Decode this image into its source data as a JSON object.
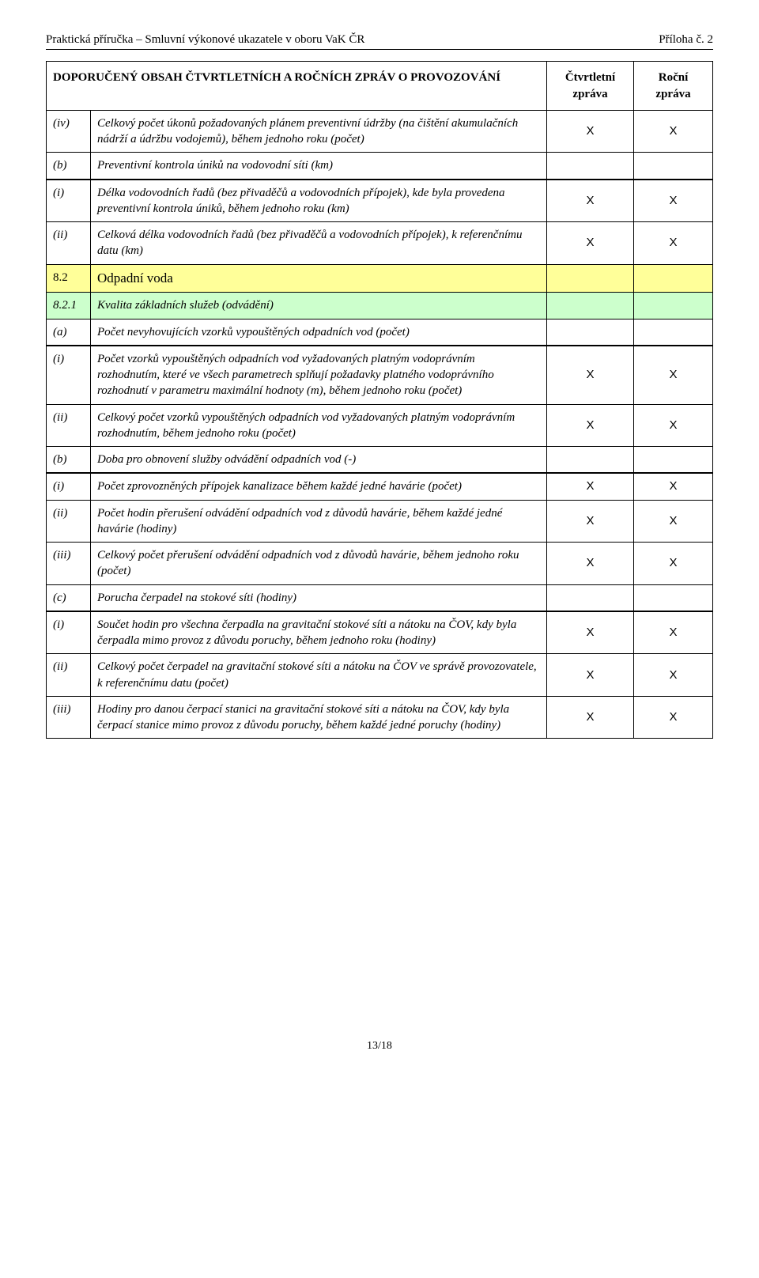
{
  "header": {
    "left": "Praktická příručka – Smluvní výkonové ukazatele v oboru VaK ČR",
    "right": "Příloha č. 2"
  },
  "table": {
    "title": "DOPORUČENÝ OBSAH ČTVRTLETNÍCH A ROČNÍCH ZPRÁV O PROVOZOVÁNÍ",
    "col_q": "Čtvrtletní zpráva",
    "col_y": "Roční zpráva",
    "mark": "X",
    "rows": [
      {
        "id": "(iv)",
        "desc": "Celkový počet úkonů požadovaných plánem preventivní údržby (na čištění akumulačních nádrží a údržbu vodojemů), během jednoho roku (počet)",
        "q": true,
        "y": true
      },
      {
        "id": "(b)",
        "desc": "Preventivní kontrola úniků na vodovodní síti (km)",
        "q": false,
        "y": false,
        "thick": true
      },
      {
        "id": "(i)",
        "desc": "Délka vodovodních řadů (bez přivaděčů a vodovodních přípojek), kde byla provedena preventivní kontrola úniků, během jednoho roku (km)",
        "q": true,
        "y": true
      },
      {
        "id": "(ii)",
        "desc": "Celková délka vodovodních řadů (bez přivaděčů a vodovodních přípojek), k referenčnímu datu (km)",
        "q": true,
        "y": true
      },
      {
        "section": "82",
        "id": "8.2",
        "desc": "Odpadní voda"
      },
      {
        "section": "821",
        "id": "8.2.1",
        "desc": "Kvalita základních služeb (odvádění)"
      },
      {
        "id": "(a)",
        "desc": "Počet nevyhovujících vzorků vypouštěných odpadních vod (počet)",
        "q": false,
        "y": false,
        "thick": true
      },
      {
        "id": "(i)",
        "desc": "Počet vzorků vypouštěných odpadních vod vyžadovaných platným vodoprávním rozhodnutím, které ve všech parametrech splňují požadavky platného vodoprávního rozhodnutí v parametru maximální hodnoty (m), během jednoho roku (počet)",
        "q": true,
        "y": true
      },
      {
        "id": "(ii)",
        "desc": "Celkový počet vzorků vypouštěných odpadních vod vyžadovaných platným vodoprávním rozhodnutím, během jednoho roku (počet)",
        "q": true,
        "y": true
      },
      {
        "id": "(b)",
        "desc": "Doba pro obnovení služby odvádění odpadních vod (-)",
        "q": false,
        "y": false,
        "thick": true
      },
      {
        "id": "(i)",
        "desc": "Počet zprovozněných přípojek kanalizace během každé jedné havárie (počet)",
        "q": true,
        "y": true
      },
      {
        "id": "(ii)",
        "desc": "Počet hodin přerušení odvádění odpadních vod z důvodů havárie, během každé jedné havárie (hodiny)",
        "q": true,
        "y": true
      },
      {
        "id": "(iii)",
        "desc": "Celkový počet přerušení odvádění odpadních vod z důvodů havárie, během jednoho roku (počet)",
        "q": true,
        "y": true
      },
      {
        "id": "(c)",
        "desc": "Porucha čerpadel na stokové síti (hodiny)",
        "q": false,
        "y": false,
        "thick": true
      },
      {
        "id": "(i)",
        "desc": "Součet hodin pro všechna čerpadla na gravitační stokové síti a nátoku na ČOV, kdy byla čerpadla mimo provoz z důvodu poruchy, během jednoho roku (hodiny)",
        "q": true,
        "y": true
      },
      {
        "id": "(ii)",
        "desc": "Celkový počet čerpadel na gravitační stokové síti a nátoku na ČOV ve správě provozovatele, k referenčnímu datu (počet)",
        "q": true,
        "y": true
      },
      {
        "id": "(iii)",
        "desc": "Hodiny pro danou čerpací stanici na gravitační stokové síti a nátoku na ČOV, kdy byla čerpací stanice mimo provoz z důvodu poruchy, během každé jedné poruchy (hodiny)",
        "q": true,
        "y": true
      }
    ]
  },
  "footer": {
    "page": "13/18"
  },
  "colors": {
    "section82_bg": "#ffff99",
    "section821_bg": "#ccffcc",
    "border": "#000000",
    "background": "#ffffff"
  }
}
